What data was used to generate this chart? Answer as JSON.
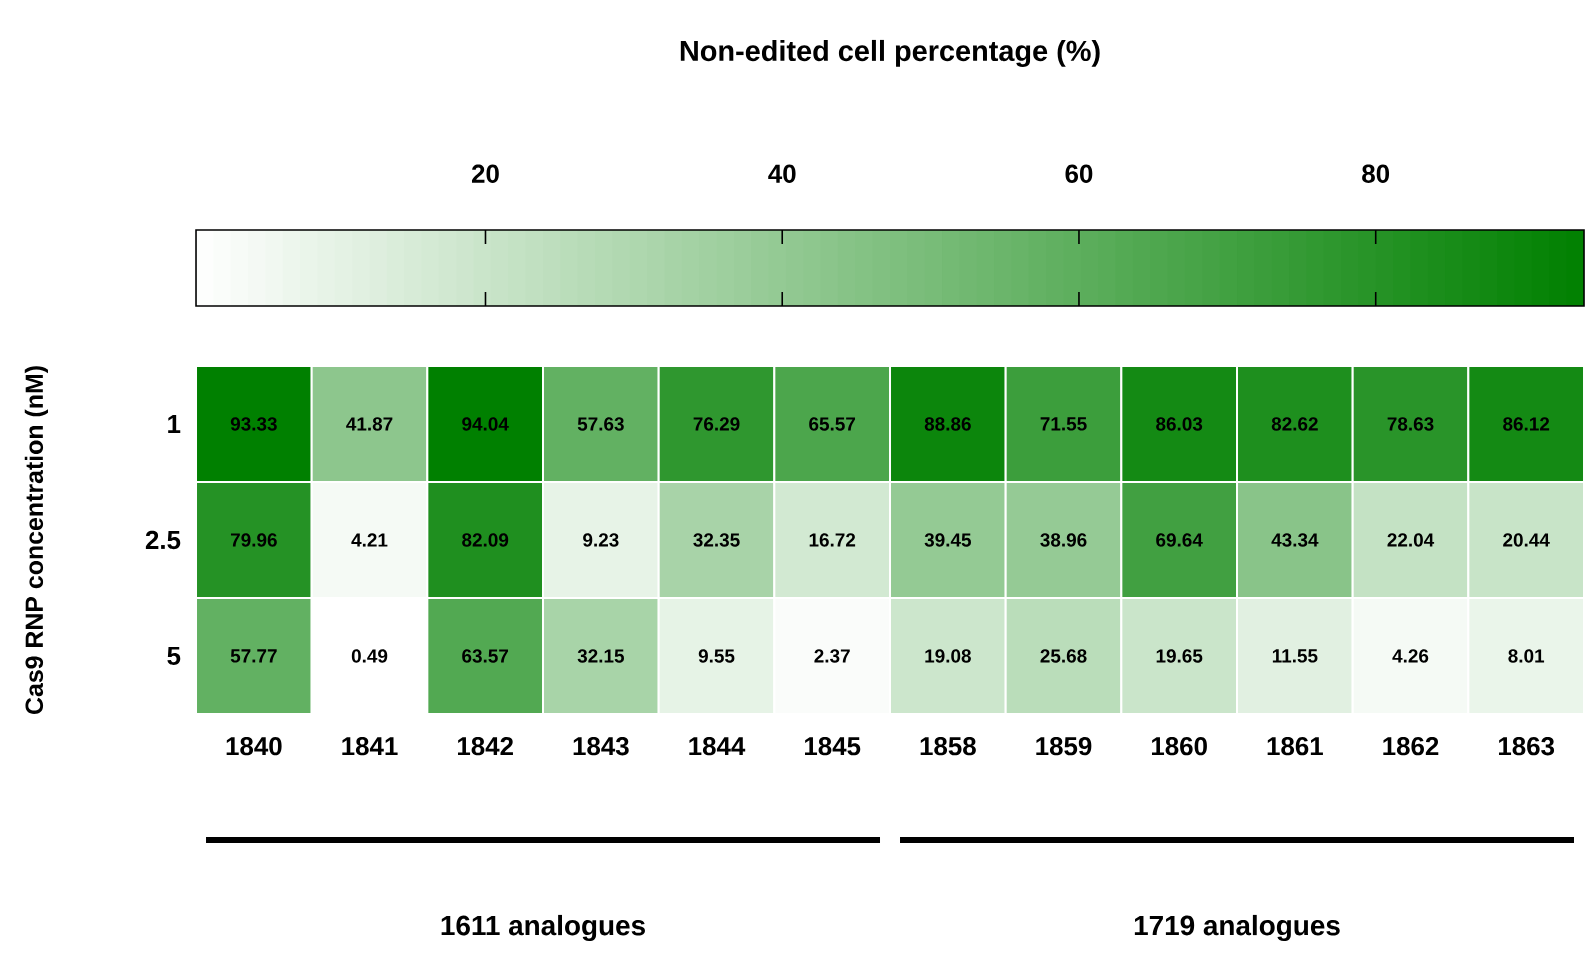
{
  "chart_data": {
    "type": "heatmap",
    "clabel": "Non-edited cell percentage (%)",
    "ylabel": "Cas9 RNP concentration (nM)",
    "categories": [
      "1840",
      "1841",
      "1842",
      "1843",
      "1844",
      "1845",
      "1858",
      "1859",
      "1860",
      "1861",
      "1862",
      "1863"
    ],
    "y_categories": [
      "1",
      "2.5",
      "5"
    ],
    "cells": [
      [
        93.33,
        41.87,
        94.04,
        57.63,
        76.29,
        65.57,
        88.86,
        71.55,
        86.03,
        82.62,
        78.63,
        86.12
      ],
      [
        79.96,
        4.21,
        82.09,
        9.23,
        32.35,
        16.72,
        39.45,
        38.96,
        69.64,
        43.34,
        22.04,
        20.44
      ],
      [
        57.77,
        0.49,
        63.57,
        32.15,
        9.55,
        2.37,
        19.08,
        25.68,
        19.65,
        11.55,
        4.26,
        8.01
      ]
    ],
    "data_labels": true,
    "clim": [
      0.49,
      94.04
    ],
    "cticks": [
      20,
      40,
      60,
      80
    ],
    "colors": [
      "#ffffff",
      "#008000"
    ],
    "annotations": [
      "1611 analogues",
      "1719 analogues"
    ]
  }
}
